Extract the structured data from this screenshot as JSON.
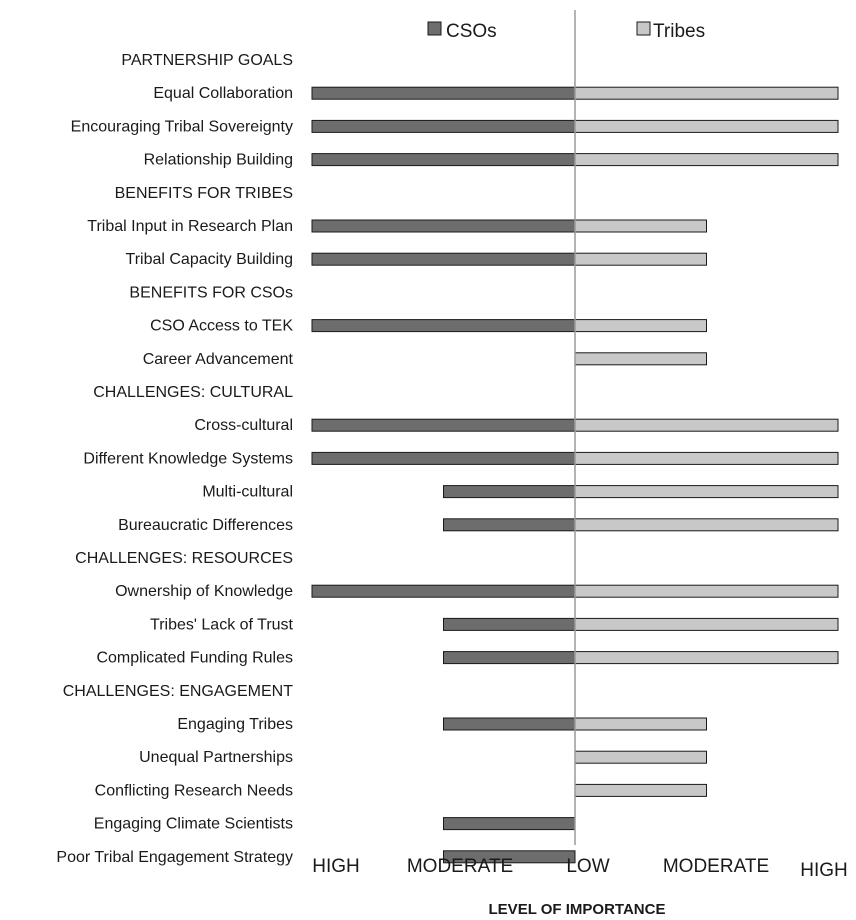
{
  "chart_data": {
    "type": "bar",
    "orientation": "diverging-horizontal",
    "xlabel": "LEVEL OF IMPORTANCE",
    "x_ticks": [
      "HIGH",
      "MODERATE",
      "LOW",
      "MODERATE",
      "HIGH"
    ],
    "legend": {
      "position": "top",
      "items": [
        "CSOs",
        "Tribes"
      ]
    },
    "colors": {
      "CSOs": "#6d6d6d",
      "Tribes": "#c8c8c8",
      "divider": "#9a9a9a"
    },
    "level_scale": {
      "LOW": 0,
      "MODERATE": 1,
      "HIGH": 2
    },
    "rows": [
      {
        "label": "PARTNERSHIP GOALS",
        "header": true
      },
      {
        "label": "Equal Collaboration",
        "cso": 2,
        "tribes": 2
      },
      {
        "label": "Encouraging Tribal Sovereignty",
        "cso": 2,
        "tribes": 2
      },
      {
        "label": "Relationship Building",
        "cso": 2,
        "tribes": 2
      },
      {
        "label": "BENEFITS FOR TRIBES",
        "header": true
      },
      {
        "label": "Tribal Input in Research Plan",
        "cso": 2,
        "tribes": 1
      },
      {
        "label": "Tribal Capacity Building",
        "cso": 2,
        "tribes": 1
      },
      {
        "label": "BENEFITS FOR CSOs",
        "header": true
      },
      {
        "label": "CSO Access to TEK",
        "cso": 2,
        "tribes": 1
      },
      {
        "label": "Career Advancement",
        "cso": 0,
        "tribes": 1
      },
      {
        "label": "CHALLENGES: CULTURAL",
        "header": true
      },
      {
        "label": "Cross-cultural",
        "cso": 2,
        "tribes": 2
      },
      {
        "label": "Different Knowledge Systems",
        "cso": 2,
        "tribes": 2
      },
      {
        "label": "Multi-cultural",
        "cso": 1,
        "tribes": 2
      },
      {
        "label": "Bureaucratic Differences",
        "cso": 1,
        "tribes": 2
      },
      {
        "label": "CHALLENGES: RESOURCES",
        "header": true
      },
      {
        "label": "Ownership of Knowledge",
        "cso": 2,
        "tribes": 2
      },
      {
        "label": "Tribes' Lack of Trust",
        "cso": 1,
        "tribes": 2
      },
      {
        "label": "Complicated Funding Rules",
        "cso": 1,
        "tribes": 2
      },
      {
        "label": "CHALLENGES: ENGAGEMENT",
        "header": true
      },
      {
        "label": "Engaging Tribes",
        "cso": 1,
        "tribes": 1
      },
      {
        "label": "Unequal Partnerships",
        "cso": 0,
        "tribes": 1
      },
      {
        "label": "Conflicting Research Needs",
        "cso": 0,
        "tribes": 1
      },
      {
        "label": "Engaging Climate Scientists",
        "cso": 1,
        "tribes": 0
      },
      {
        "label": "Poor Tribal Engagement Strategy",
        "cso": 1,
        "tribes": 0
      }
    ]
  }
}
